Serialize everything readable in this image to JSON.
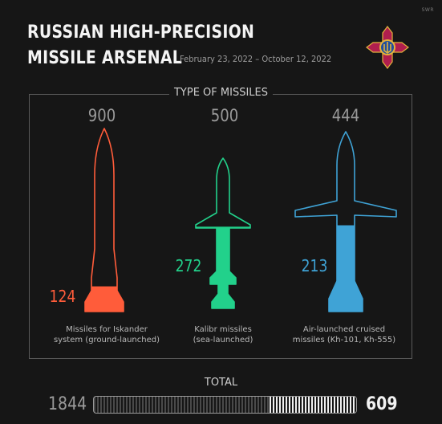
{
  "header": {
    "watermark": "SWR",
    "title_line1": "RUSSIAN HIGH-PRECISION",
    "title_line2": "MISSILE ARSENAL",
    "subtitle": "February 23, 2022 – October 12, 2022",
    "emblem_icon": "ukrainian-armed-forces-cross-emblem-icon"
  },
  "section_title": "TYPE OF MISSILES",
  "chart_data": {
    "type": "bar",
    "categories": [
      "Missiles for Iskander system (ground-launched)",
      "Kalibr missiles (sea-launched)",
      "Air-launched cruised missiles (Kh-101, Kh-555)"
    ],
    "caption_lines": [
      [
        "Missiles for Iskander",
        "system (ground-launched)"
      ],
      [
        "Kalibr missiles",
        "(sea-launched)"
      ],
      [
        "Air-launched cruised",
        "missiles (Kh-101, Kh-555)"
      ]
    ],
    "series": [
      {
        "values": [
          900,
          500,
          444
        ]
      },
      {
        "values": [
          124,
          272,
          213
        ]
      }
    ],
    "colors": [
      "#ff5c3a",
      "#22d18b",
      "#3fa3d6"
    ],
    "icons": [
      "iskander-missile-icon",
      "kalibr-missile-icon",
      "cruise-missile-icon"
    ],
    "title": "TYPE OF MISSILES",
    "xlabel": "",
    "ylabel": "",
    "grid": false
  },
  "total": {
    "title": "TOTAL",
    "left_value": 1844,
    "right_value": 609
  }
}
